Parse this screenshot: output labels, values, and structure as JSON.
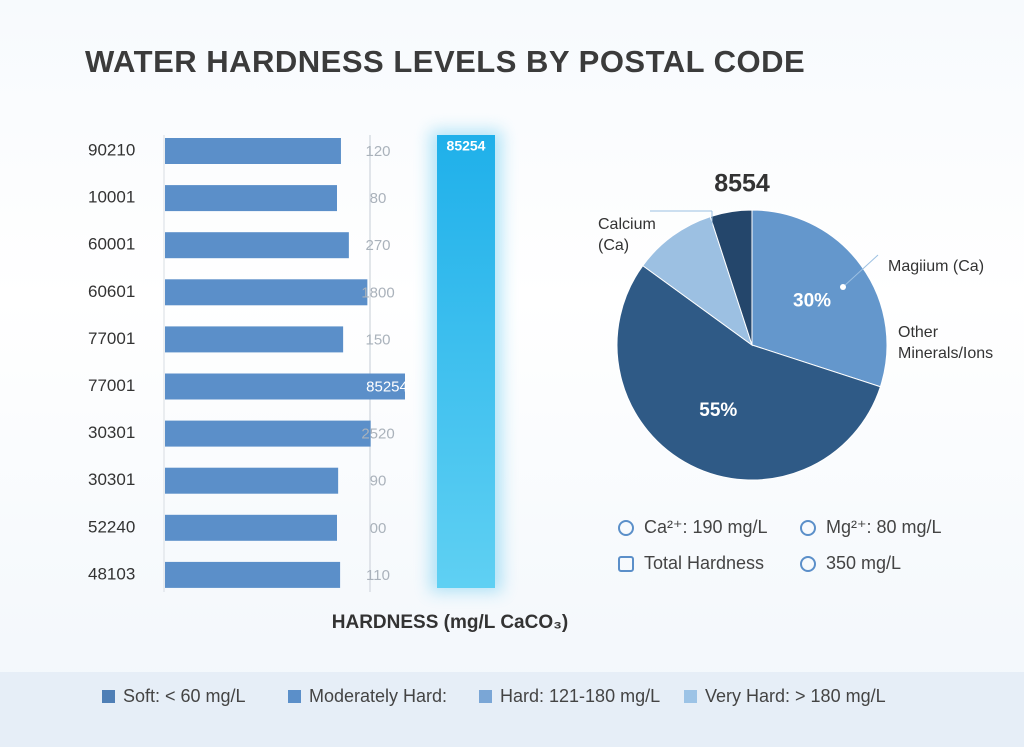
{
  "title": "WATER HARDNESS LEVELS BY POSTAL CODE",
  "chart_data": [
    {
      "type": "bar",
      "categories": [
        "90210",
        "10001",
        "60001",
        "60601",
        "77001",
        "77001",
        "30301",
        "30301",
        "52240",
        "48103"
      ],
      "values": [
        120,
        80,
        270,
        1800,
        150,
        85254,
        2520,
        90,
        0,
        110
      ],
      "value_labels": [
        "120",
        "80",
        "270",
        "1800",
        "150",
        "85254",
        "2520",
        "90",
        "00",
        "110"
      ],
      "color": "#5b8fc9",
      "log_scale": true,
      "x_label": "HARDNESS (mg/L CaCO₃)",
      "highlight": {
        "value": 85254,
        "color": "#29b6ea"
      }
    },
    {
      "type": "pie",
      "title": "8554",
      "values": [
        30,
        55,
        10,
        5
      ],
      "value_labels": [
        "30%",
        "55%",
        null,
        null
      ],
      "colors": [
        "#6497cc",
        "#2f5a86",
        "#9cc0e2",
        "#24466b"
      ],
      "annotations": [
        "Calcium (Ca)",
        "Magiium (Ca)",
        "Other Minerals/Ions"
      ]
    }
  ],
  "stats": [
    "Ca²⁺: 190 mg/L",
    "Mg²⁺: 80 mg/L",
    "Total Hardness",
    "350 mg/L"
  ],
  "legend": [
    {
      "label": "Soft:  < 60 mg/L",
      "color": "#4f7fb6"
    },
    {
      "label": "Moderately Hard:",
      "color": "#5b8fc9"
    },
    {
      "label": "Hard: 121-180 mg/L",
      "color": "#7aa6d6"
    },
    {
      "label": "Very Hard: > 180 mg/L",
      "color": "#9cc3e6"
    }
  ]
}
